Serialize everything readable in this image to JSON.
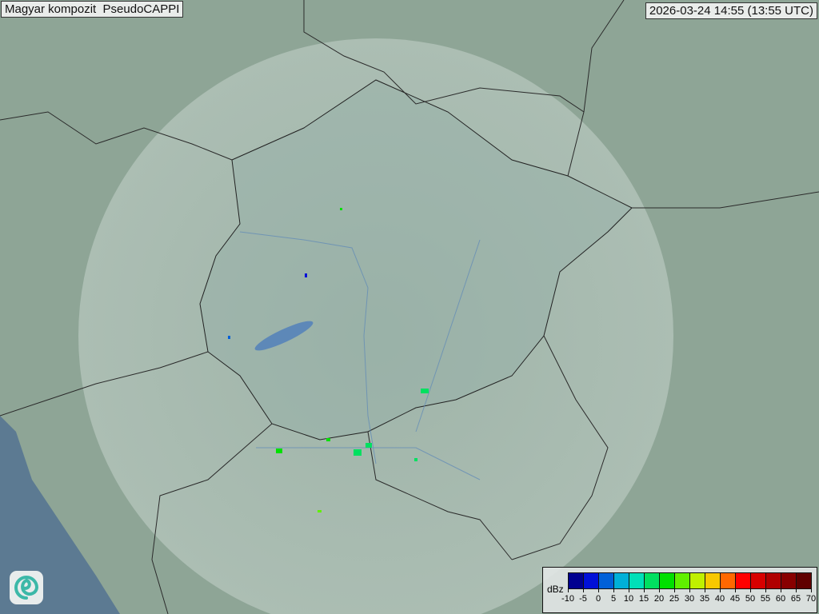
{
  "header": {
    "title": "Magyar kompozit  PseudoCAPPI",
    "timestamp": "2026-03-24 14:55 (13:55 UTC)"
  },
  "legend": {
    "unit": "dBz",
    "labels": [
      "-10",
      "-5",
      "0",
      "5",
      "10",
      "15",
      "20",
      "25",
      "30",
      "35",
      "40",
      "45",
      "50",
      "55",
      "60",
      "65",
      "70"
    ],
    "colors": [
      "#000090",
      "#0010d8",
      "#0060d8",
      "#00b0d8",
      "#00e0b8",
      "#00e060",
      "#00e000",
      "#60f000",
      "#c0f000",
      "#f8c800",
      "#ff6800",
      "#ff0000",
      "#d80000",
      "#b00000",
      "#880000",
      "#600000"
    ]
  },
  "map": {
    "land_color": "#8ea596",
    "sea_color": "#5c7a92",
    "coverage_color": "#b8c8c0"
  },
  "logo": {
    "icon": "swirl-logo-icon"
  }
}
